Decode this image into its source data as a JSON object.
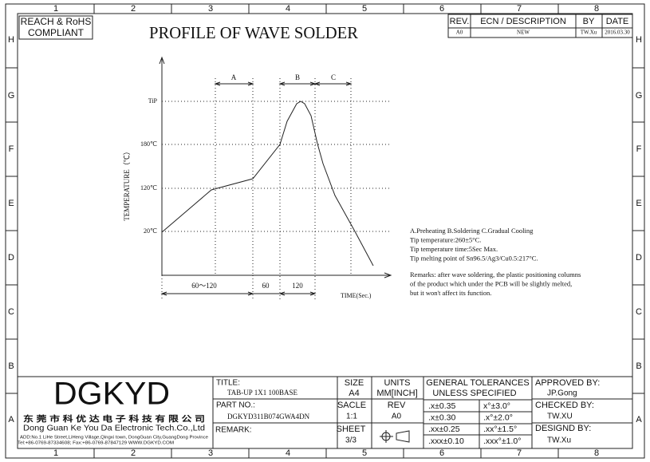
{
  "zones": {
    "columns": [
      "1",
      "2",
      "3",
      "4",
      "5",
      "6",
      "7",
      "8"
    ],
    "rows": [
      "H",
      "G",
      "F",
      "E",
      "D",
      "C",
      "B",
      "A"
    ]
  },
  "compliance": [
    "REACH & RoHS",
    "COMPLIANT"
  ],
  "title": "PROFILE OF WAVE SOLDER",
  "revision_table": {
    "headers": [
      "REV.",
      "ECN / DESCRIPTION",
      "BY",
      "DATE"
    ],
    "rows": [
      [
        "A0",
        "NEW",
        "TW.Xu",
        "2016.03.30"
      ]
    ]
  },
  "profile": {
    "y_axis_label": "TEMPERATURE（℃）",
    "temperature_labels": [
      "TiP",
      "180℃",
      "120℃",
      "20℃"
    ],
    "zones": [
      "A",
      "B",
      "C"
    ],
    "durations": [
      "60～120",
      "60",
      "120"
    ],
    "x_axis_label": "TIME(Sec.)"
  },
  "notes": [
    "A.Preheating  B.Soldering  C.Gradual Cooling",
    "Tip temperature:260±5°C.",
    "Tip temperature time:5Sec Max.",
    "Tip melting point of Sn96.5/Ag3/Cu0.5:217°C."
  ],
  "remarks": [
    "Remarks: after wave soldering, the plastic positioning columns",
    "of the product  which under the PCB will be slightly melted,",
    "but it won't affect its function."
  ],
  "company": {
    "logo": "DGKYD",
    "name_cn": "东 莞 市 科 优 达 电 子 科 技 有 限 公 司",
    "name_en": "Dong Guan Ke You Da Electronic Tech.Co.,Ltd",
    "address": "ADD:No.1 LiHe Street,LiHeng Village,Qingxi town, DongGuan City,GuangDong Province",
    "contact": "Tel:+86-0769-87334608; Fax:+86-0769-87847129  WWW.DGKYD.COM"
  },
  "title_block": {
    "title_label": "TITLE:",
    "title": "TAB-UP 1X1 100BASE",
    "size_label": "SIZE",
    "size": "A4",
    "units_label": "UNITS",
    "units": "MM[INCH]",
    "tolerances_label": [
      "GENERAL TOLERANCES",
      "UNLESS SPECIFIED"
    ],
    "tolerances": [
      [
        ".x±0.35",
        "x°±3.0°"
      ],
      [
        ".x±0.30",
        ".x°±2.0°"
      ],
      [
        ".xx±0.25",
        ".xx°±1.5°"
      ],
      [
        ".xxx±0.10",
        ".xxx°±1.0°"
      ]
    ],
    "approved_label": "APPROVED BY:",
    "approved": "JP.Gong",
    "part_label": "PART NO.:",
    "part": "DGKYD311B074GWA4DN",
    "scale_label": "SACLE",
    "scale": "1:1",
    "rev_label": "REV",
    "rev": "A0",
    "checked_label": "CHECKED BY:",
    "checked": "TW.XU",
    "remark_label": "REMARK:",
    "sheet_label": "SHEET",
    "sheet": "3/3",
    "designed_label": "DESIGND BY:",
    "designed": "TW.Xu"
  }
}
